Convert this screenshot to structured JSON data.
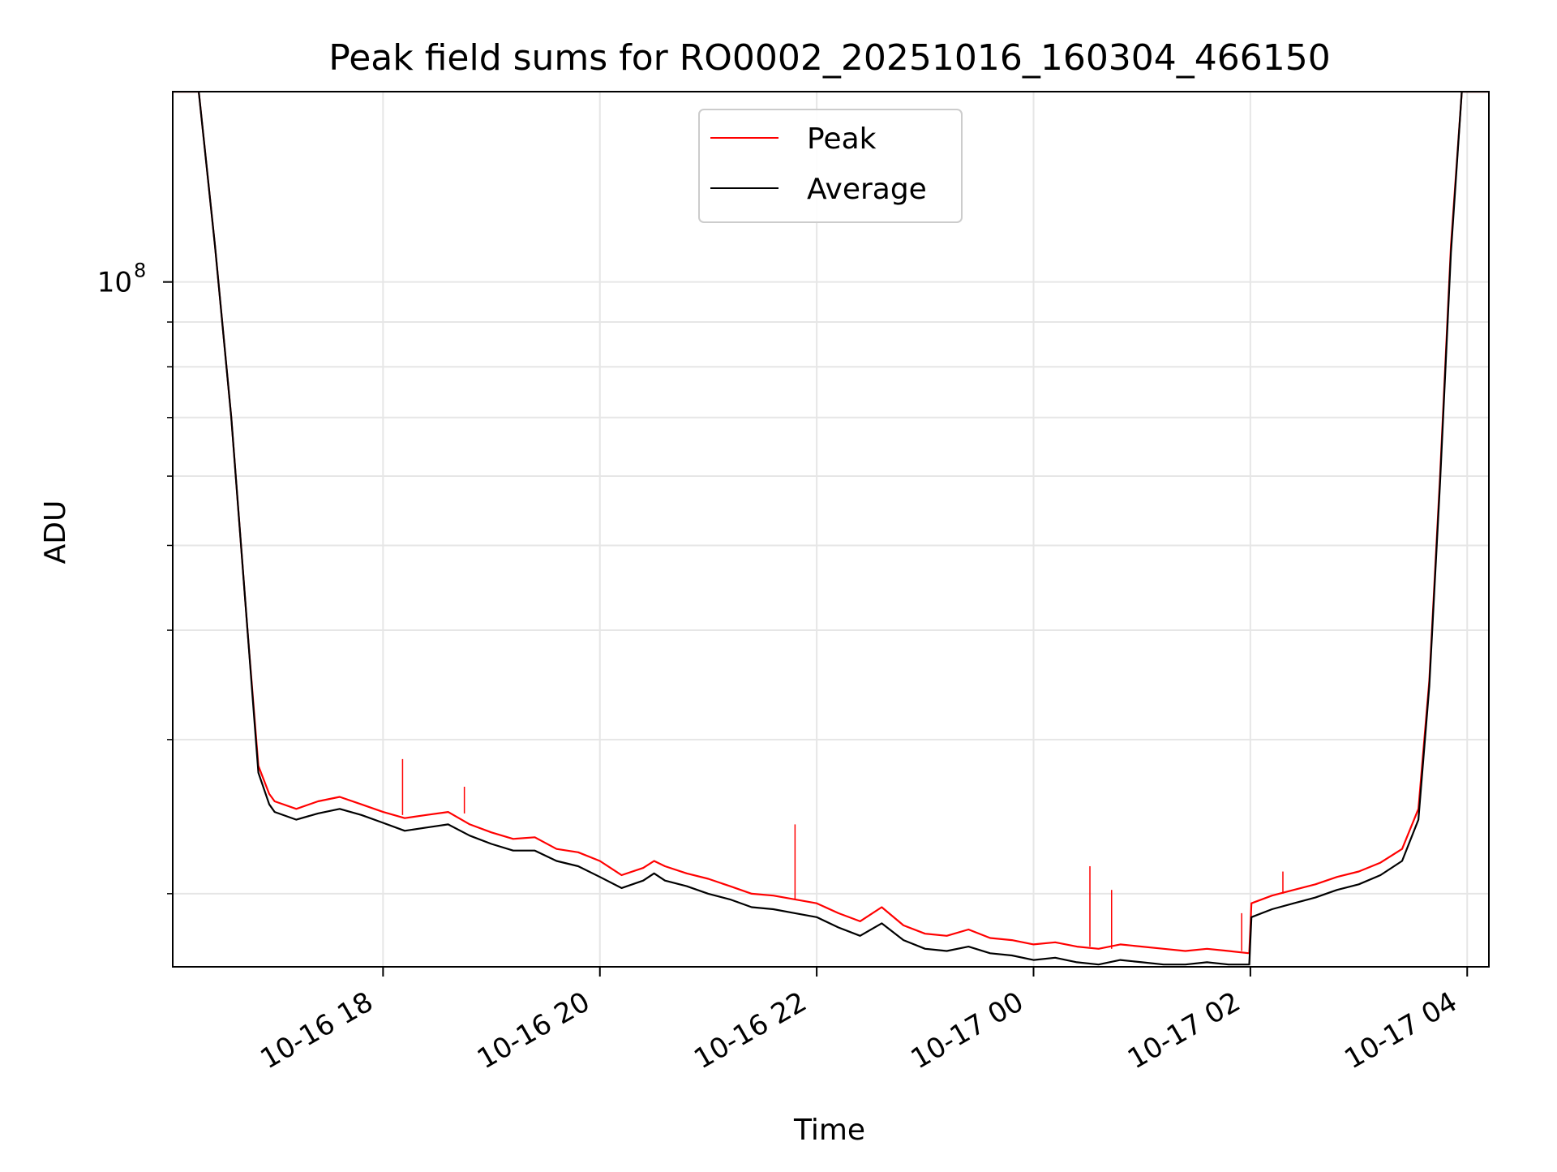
{
  "chart_data": {
    "type": "line",
    "title": "Peak field sums for RO0002_20251016_160304_466150",
    "xlabel": "Time",
    "ylabel": "ADU",
    "yscale": "log",
    "grid": true,
    "legend_position": "upper center",
    "x_units": "hours since 2025-10-16 00:00",
    "xlim": [
      16.06,
      28.2
    ],
    "ylim": [
      16500000,
      165000000
    ],
    "x_ticks": [
      {
        "value": 18,
        "label": "10-16 18"
      },
      {
        "value": 20,
        "label": "10-16 20"
      },
      {
        "value": 22,
        "label": "10-16 22"
      },
      {
        "value": 24,
        "label": "10-17 00"
      },
      {
        "value": 26,
        "label": "10-17 02"
      },
      {
        "value": 28,
        "label": "10-17 04"
      }
    ],
    "y_major_ticks": [
      {
        "value": 100000000,
        "base": "10",
        "exp": "8"
      }
    ],
    "y_minor_ticks": [
      20000000,
      30000000,
      40000000,
      50000000,
      60000000,
      70000000,
      80000000,
      90000000,
      200000000
    ],
    "series": [
      {
        "name": "Peak",
        "color": "#ff0000",
        "x": [
          16.06,
          16.3,
          16.45,
          16.6,
          16.75,
          16.85,
          16.95,
          17.0,
          17.2,
          17.4,
          17.6,
          17.8,
          18.0,
          18.2,
          18.4,
          18.6,
          18.8,
          19.0,
          19.2,
          19.4,
          19.6,
          19.8,
          20.0,
          20.2,
          20.4,
          20.5,
          20.6,
          20.8,
          21.0,
          21.2,
          21.4,
          21.6,
          21.8,
          22.0,
          22.2,
          22.4,
          22.6,
          22.8,
          23.0,
          23.2,
          23.4,
          23.6,
          23.8,
          24.0,
          24.2,
          24.4,
          24.6,
          24.8,
          25.0,
          25.2,
          25.4,
          25.6,
          25.8,
          25.99,
          26.01,
          26.2,
          26.4,
          26.6,
          26.8,
          27.0,
          27.2,
          27.4,
          27.55,
          27.65,
          27.75,
          27.85,
          27.95,
          28.05,
          28.2
        ],
        "y": [
          165000000,
          165000000,
          110000000,
          70000000,
          40000000,
          28000000,
          26000000,
          25500000,
          25000000,
          25500000,
          25800000,
          25300000,
          24800000,
          24400000,
          24600000,
          24800000,
          24000000,
          23500000,
          23100000,
          23200000,
          22500000,
          22300000,
          21800000,
          21000000,
          21400000,
          21800000,
          21500000,
          21100000,
          20800000,
          20400000,
          20000000,
          19900000,
          19700000,
          19500000,
          19000000,
          18600000,
          19300000,
          18400000,
          18000000,
          17900000,
          18200000,
          17800000,
          17700000,
          17500000,
          17600000,
          17400000,
          17300000,
          17500000,
          17400000,
          17300000,
          17200000,
          17300000,
          17200000,
          17100000,
          19500000,
          19900000,
          20200000,
          20500000,
          20900000,
          21200000,
          21700000,
          22500000,
          25000000,
          35000000,
          60000000,
          110000000,
          165000000,
          165000000,
          165000000
        ]
      },
      {
        "name": "Average",
        "color": "#000000",
        "x": [
          16.06,
          16.3,
          16.45,
          16.6,
          16.75,
          16.85,
          16.95,
          17.0,
          17.2,
          17.4,
          17.6,
          17.8,
          18.0,
          18.2,
          18.4,
          18.6,
          18.8,
          19.0,
          19.2,
          19.4,
          19.6,
          19.8,
          20.0,
          20.2,
          20.4,
          20.5,
          20.6,
          20.8,
          21.0,
          21.2,
          21.4,
          21.6,
          21.8,
          22.0,
          22.2,
          22.4,
          22.6,
          22.8,
          23.0,
          23.2,
          23.4,
          23.6,
          23.8,
          24.0,
          24.2,
          24.4,
          24.6,
          24.8,
          25.0,
          25.2,
          25.4,
          25.6,
          25.8,
          25.99,
          26.01,
          26.2,
          26.4,
          26.6,
          26.8,
          27.0,
          27.2,
          27.4,
          27.55,
          27.65,
          27.75,
          27.85,
          27.95,
          28.05,
          28.2
        ],
        "y": [
          165000000,
          165000000,
          110000000,
          70000000,
          40000000,
          27500000,
          25300000,
          24800000,
          24300000,
          24700000,
          25000000,
          24600000,
          24100000,
          23600000,
          23800000,
          24000000,
          23300000,
          22800000,
          22400000,
          22400000,
          21800000,
          21500000,
          20900000,
          20300000,
          20700000,
          21100000,
          20700000,
          20400000,
          20000000,
          19700000,
          19300000,
          19200000,
          19000000,
          18800000,
          18300000,
          17900000,
          18500000,
          17700000,
          17300000,
          17200000,
          17400000,
          17100000,
          17000000,
          16800000,
          16900000,
          16700000,
          16600000,
          16800000,
          16700000,
          16600000,
          16600000,
          16700000,
          16600000,
          16600000,
          18800000,
          19200000,
          19500000,
          19800000,
          20200000,
          20500000,
          21000000,
          21800000,
          24300000,
          34500000,
          59000000,
          108000000,
          165000000,
          165000000,
          165000000
        ]
      }
    ],
    "spikes": [
      {
        "series": "Peak",
        "x": 18.18,
        "y": 24600000,
        "y_top": 28500000
      },
      {
        "series": "Peak",
        "x": 18.75,
        "y": 24700000,
        "y_top": 26500000
      },
      {
        "series": "Peak",
        "x": 21.8,
        "y": 19700000,
        "y_top": 24000000
      },
      {
        "series": "Peak",
        "x": 24.52,
        "y": 17400000,
        "y_top": 21500000
      },
      {
        "series": "Peak",
        "x": 24.72,
        "y": 17300000,
        "y_top": 20200000
      },
      {
        "series": "Peak",
        "x": 25.92,
        "y": 17200000,
        "y_top": 19000000
      },
      {
        "series": "Peak",
        "x": 26.3,
        "y": 20000000,
        "y_top": 21200000
      }
    ]
  }
}
